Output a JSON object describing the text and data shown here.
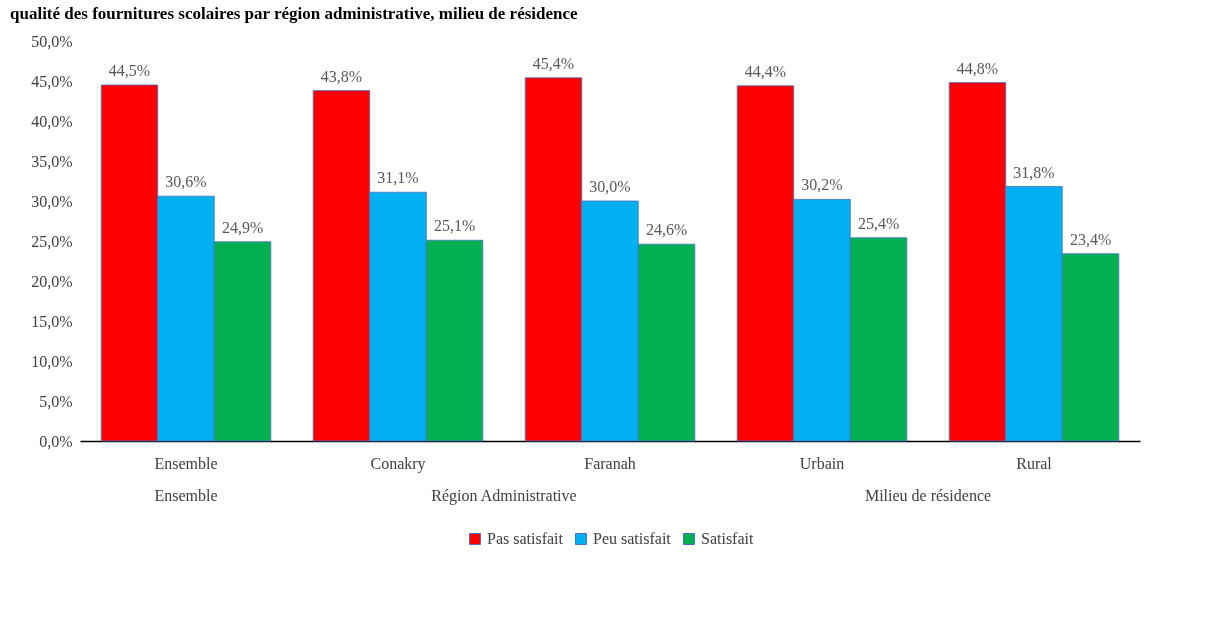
{
  "chart_data": {
    "type": "bar",
    "title": "qualité des fournitures scolaires par région administrative, milieu de résidence",
    "categories": [
      "Ensemble",
      "Conakry",
      "Faranah",
      "Urbain",
      "Rural"
    ],
    "annotations": [
      "Ensemble",
      "Région Administrative",
      "Milieu de résidence"
    ],
    "series": [
      {
        "name": "Pas satisfait",
        "color": "#ff0000",
        "values": [
          44.5,
          43.8,
          45.4,
          44.4,
          44.8
        ],
        "value_labels": [
          "44,5%",
          "43,8%",
          "45,4%",
          "44,4%",
          "44,8%"
        ]
      },
      {
        "name": "Peu satisfait",
        "color": "#00b0f0",
        "values": [
          30.6,
          31.1,
          30.0,
          30.2,
          31.8
        ],
        "value_labels": [
          "30,6%",
          "31,1%",
          "30,0%",
          "30,2%",
          "31,8%"
        ]
      },
      {
        "name": "Satisfait",
        "color": "#00b050",
        "values": [
          24.9,
          25.1,
          24.6,
          25.4,
          23.4
        ],
        "value_labels": [
          "24,9%",
          "25,1%",
          "24,6%",
          "25,4%",
          "23,4%"
        ]
      }
    ],
    "ylim": [
      0,
      50
    ],
    "yticks": [
      {
        "value": 0,
        "label": "0,0%"
      },
      {
        "value": 5,
        "label": "5,0%"
      },
      {
        "value": 10,
        "label": "10,0%"
      },
      {
        "value": 15,
        "label": "15,0%"
      },
      {
        "value": 20,
        "label": "20,0%"
      },
      {
        "value": 25,
        "label": "25,0%"
      },
      {
        "value": 30,
        "label": "30,0%"
      },
      {
        "value": 35,
        "label": "35,0%"
      },
      {
        "value": 40,
        "label": "40,0%"
      },
      {
        "value": 45,
        "label": "45,0%"
      },
      {
        "value": 50,
        "label": "50,0%"
      }
    ],
    "grid": false,
    "legend": "bottom"
  }
}
